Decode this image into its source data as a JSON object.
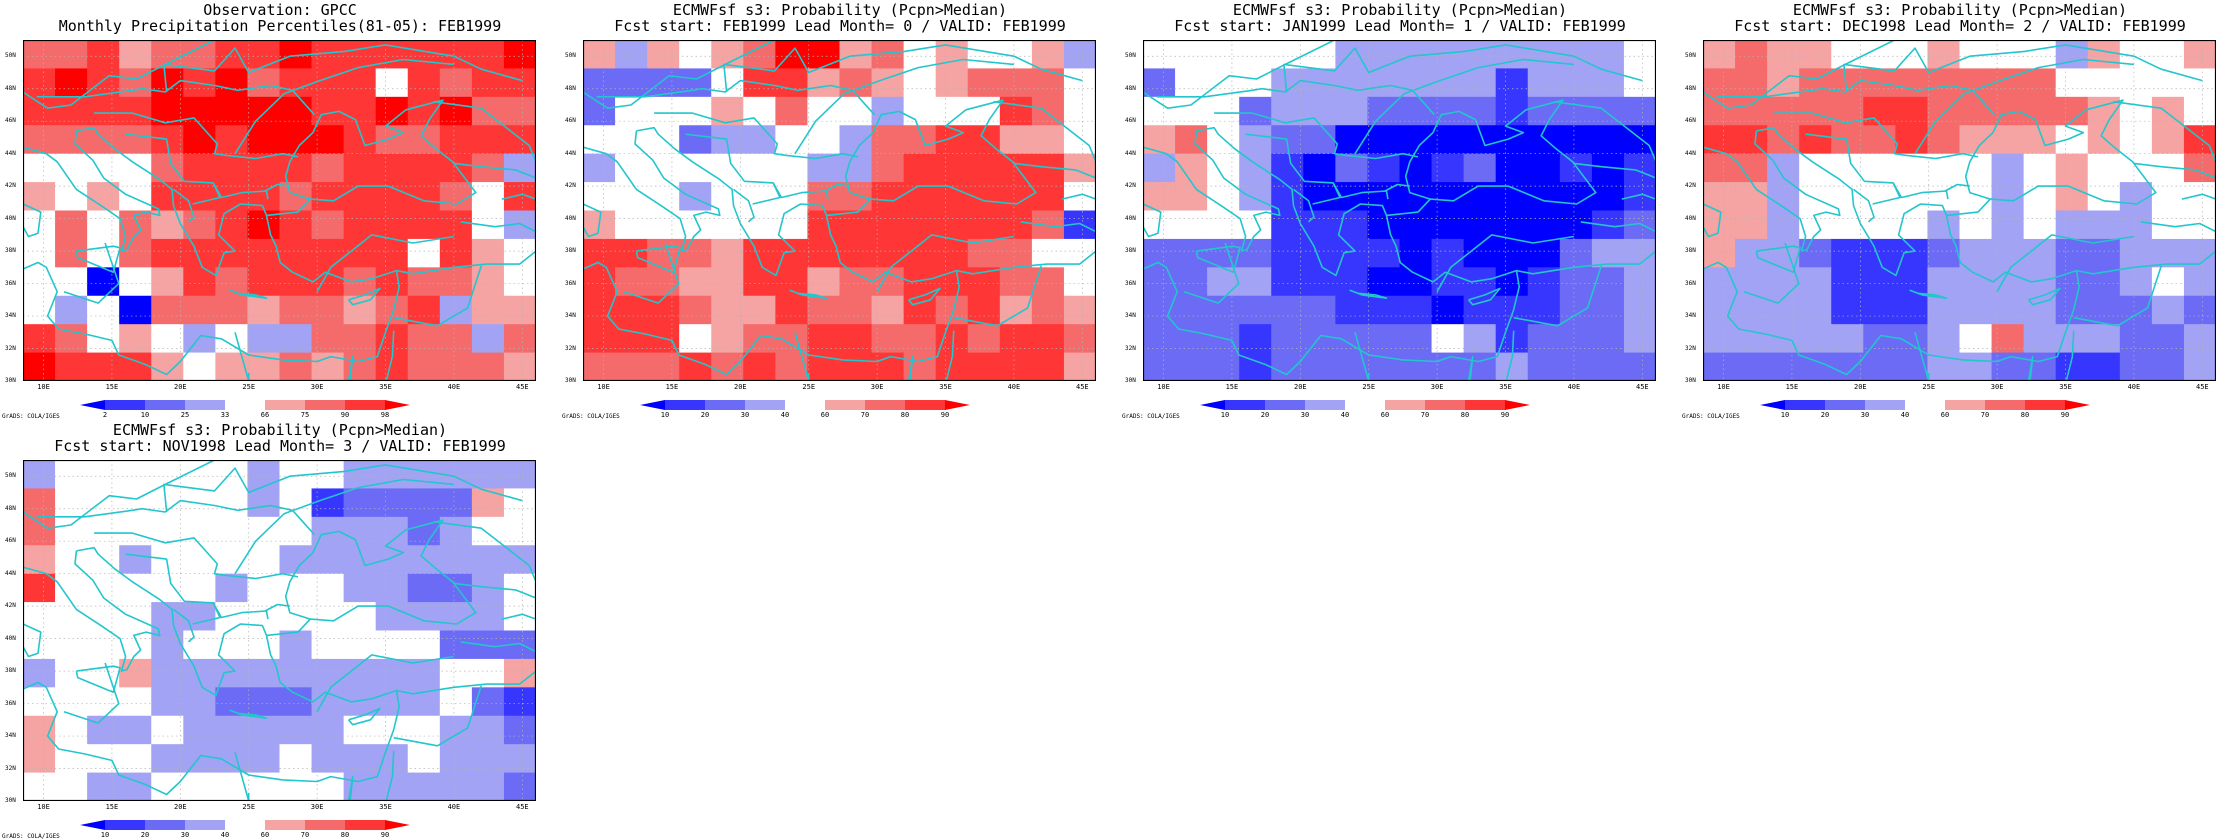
{
  "colors": {
    "classes": [
      "#0000ff",
      "#3636ff",
      "#6b6bf5",
      "#a3a3f5",
      "#ffffff",
      "#f5a3a3",
      "#f56b6b",
      "#ff3636",
      "#ff0000"
    ],
    "coast": "#22c6cc",
    "grid": "#b4b4b4"
  },
  "axes": {
    "lat_labels": [
      "50N",
      "48N",
      "46N",
      "44N",
      "42N",
      "40N",
      "38N",
      "36N",
      "34N",
      "32N",
      "30N"
    ],
    "lon_labels": [
      "10E",
      "15E",
      "20E",
      "25E",
      "30E",
      "35E",
      "40E",
      "45E"
    ],
    "lat_range": [
      30,
      51
    ],
    "lon_range": [
      8.5,
      46
    ]
  },
  "credit": "GrADS: COLA/IGES",
  "panels": [
    {
      "title1": "Observation: GPCC",
      "title2": "Monthly Precipitation Percentiles(81-05): FEB1999",
      "colorbar_labels": [
        "2",
        "10",
        "25",
        "33",
        "66",
        "75",
        "90",
        "98"
      ],
      "grid": [
        "6675667787777778",
        "7876878677747677",
        "7777888887787866",
        "6666787888766777",
        "4444677776777763",
        "5454777767777647",
        "4646567876777743",
        "4646777777774754",
        "4404576777676654",
        "4340666566567355",
        "7645434336676636",
        "8777545565676665"
      ]
    },
    {
      "title1": "ECMWFsf s3: Probability (Pcpn>Median)",
      "title2": "Fcst start: FEB1999   Lead Month= 0 / VALID: FEB1999",
      "colorbar_labels": [
        "10",
        "20",
        "30",
        "40",
        "60",
        "70",
        "80",
        "90"
      ],
      "grid": [
        "5354568856454453",
        "2222477565456664",
        "2444546443444764",
        "4442334436677554",
        "3444444336777775",
        "4443444667777774",
        "5444444777777761",
        "7766577777776644",
        "7665577566777664",
        "7776557665767565",
        "7774566776676776",
        "6667676777677775"
      ]
    },
    {
      "title1": "ECMWFsf s3: Probability (Pcpn>Median)",
      "title2": "Fcst start: JAN1999   Lead Month= 1 / VALID: FEB1999",
      "colorbar_labels": [
        "10",
        "20",
        "30",
        "40",
        "60",
        "70",
        "80",
        "90"
      ],
      "grid": [
        "4444443333333334",
        "2444333333313334",
        "4442333222212222",
        "5643220000000000",
        "3543102101200101",
        "5543100000000001",
        "4444111000000012",
        "2222111101000233",
        "2233111001101223",
        "2222221110111223",
        "2221222224312223",
        "2221222222232222"
      ]
    },
    {
      "title1": "ECMWFsf s3: Probability (Pcpn>Median)",
      "title2": "Fcst start: DEC1998   Lead Month= 2 / VALID: FEB1999",
      "colorbar_labels": [
        "10",
        "20",
        "30",
        "40",
        "60",
        "70",
        "80",
        "90"
      ],
      "grid": [
        "5655444544435445",
        "6656666666644444",
        "6666677666665454",
        "7767667655545457",
        "6634444443454446",
        "5534444443454344",
        "5534444343433344",
        "5332111233322333",
        "3333111333322343",
        "3333111333322232",
        "3333322346333223",
        "2222222332211223"
      ]
    },
    {
      "title1": "ECMWFsf s3: Probability (Pcpn>Median)",
      "title2": "Fcst start: NOV1998   Lead Month= 3 / VALID: FEB1999",
      "colorbar_labels": [
        "10",
        "20",
        "30",
        "40",
        "60",
        "70",
        "80",
        "90"
      ],
      "grid": [
        "3444444344333333",
        "6444444341222254",
        "6444444443332344",
        "5443444433333333",
        "7444443444332234",
        "4444334444433334",
        "4444344434444222",
        "3445333333333445",
        "4444332223333421",
        "5433433333444332",
        "5444333343334333",
        "4433444444333332"
      ]
    }
  ]
}
